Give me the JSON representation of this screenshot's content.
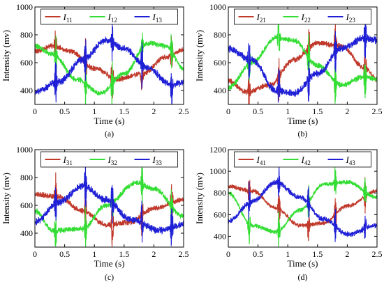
{
  "chart_data": [
    {
      "type": "line",
      "panel_label": "(a)",
      "xlabel": "Time (s)",
      "ylabel": "Intensity (mv)",
      "xlim": [
        0,
        2.5
      ],
      "ylim": [
        300,
        1000
      ],
      "xticks": [
        "0",
        "0.5",
        "1",
        "1.5",
        "2",
        "2.5"
      ],
      "yticks": [
        "400",
        "600",
        "800",
        "1000"
      ],
      "legend_position": "top",
      "grid": false,
      "jumps_at": [
        0.35,
        0.85,
        1.3,
        1.8,
        2.3
      ],
      "series": [
        {
          "name": "I",
          "sub": "11",
          "color": "#c0392b",
          "baseline": 600,
          "amplitude": 120,
          "period": 1.9,
          "phase": 0.25,
          "noise": 14,
          "points": [
            [
              0,
              680
            ],
            [
              0.3,
              720
            ],
            [
              0.6,
              680
            ],
            [
              1.0,
              560
            ],
            [
              1.4,
              480
            ],
            [
              1.8,
              520
            ],
            [
              2.2,
              640
            ],
            [
              2.5,
              690
            ]
          ]
        },
        {
          "name": "I",
          "sub": "12",
          "color": "#33dd33",
          "baseline": 560,
          "amplitude": 200,
          "period": 1.9,
          "phase": 0.93,
          "noise": 14,
          "points": [
            [
              0,
              720
            ],
            [
              0.3,
              660
            ],
            [
              0.7,
              480
            ],
            [
              1.1,
              380
            ],
            [
              1.5,
              520
            ],
            [
              1.9,
              740
            ],
            [
              2.2,
              720
            ],
            [
              2.5,
              560
            ]
          ]
        },
        {
          "name": "I",
          "sub": "13",
          "color": "#1f1fd6",
          "baseline": 570,
          "amplitude": 190,
          "period": 1.9,
          "phase": 0.55,
          "noise": 18,
          "points": [
            [
              0,
              390
            ],
            [
              0.4,
              460
            ],
            [
              0.8,
              620
            ],
            [
              1.2,
              760
            ],
            [
              1.5,
              700
            ],
            [
              1.9,
              560
            ],
            [
              2.3,
              440
            ],
            [
              2.5,
              460
            ]
          ]
        }
      ]
    },
    {
      "type": "line",
      "panel_label": "(b)",
      "xlabel": "Time (s)",
      "ylabel": "Intensity (mv)",
      "xlim": [
        0,
        2.5
      ],
      "ylim": [
        300,
        1000
      ],
      "xticks": [
        "0",
        "0.5",
        "1",
        "1.5",
        "2",
        "2.5"
      ],
      "yticks": [
        "400",
        "600",
        "800",
        "1000"
      ],
      "legend_position": "top",
      "grid": false,
      "jumps_at": [
        0.35,
        0.85,
        1.35,
        1.8,
        2.3
      ],
      "series": [
        {
          "name": "I",
          "sub": "21",
          "color": "#c0392b",
          "baseline": 560,
          "amplitude": 190,
          "period": 2.3,
          "phase": 0.8,
          "noise": 14,
          "points": [
            [
              0,
              470
            ],
            [
              0.3,
              390
            ],
            [
              0.7,
              440
            ],
            [
              1.1,
              620
            ],
            [
              1.5,
              740
            ],
            [
              1.9,
              720
            ],
            [
              2.3,
              560
            ],
            [
              2.5,
              480
            ]
          ]
        },
        {
          "name": "I",
          "sub": "22",
          "color": "#33dd33",
          "baseline": 600,
          "amplitude": 200,
          "period": 2.3,
          "phase": 0.3,
          "noise": 14,
          "points": [
            [
              0,
              420
            ],
            [
              0.4,
              600
            ],
            [
              0.8,
              780
            ],
            [
              1.1,
              760
            ],
            [
              1.5,
              580
            ],
            [
              1.9,
              440
            ],
            [
              2.3,
              500
            ],
            [
              2.5,
              480
            ]
          ]
        },
        {
          "name": "I",
          "sub": "23",
          "color": "#1f1fd6",
          "baseline": 580,
          "amplitude": 210,
          "period": 2.3,
          "phase": 0.1,
          "noise": 18,
          "points": [
            [
              0,
              700
            ],
            [
              0.4,
              620
            ],
            [
              0.8,
              400
            ],
            [
              1.1,
              380
            ],
            [
              1.5,
              520
            ],
            [
              1.9,
              700
            ],
            [
              2.3,
              780
            ],
            [
              2.5,
              760
            ]
          ]
        }
      ]
    },
    {
      "type": "line",
      "panel_label": "(c)",
      "xlabel": "Time (s)",
      "ylabel": "Intensity (mv)",
      "xlim": [
        0,
        2.5
      ],
      "ylim": [
        300,
        1000
      ],
      "xticks": [
        "0",
        "0.5",
        "1",
        "1.5",
        "2",
        "2.5"
      ],
      "yticks": [
        "400",
        "600",
        "800",
        "1000"
      ],
      "legend_position": "top",
      "grid": false,
      "jumps_at": [
        0.35,
        0.85,
        1.3,
        1.8,
        2.3
      ],
      "series": [
        {
          "name": "I",
          "sub": "31",
          "color": "#c0392b",
          "baseline": 560,
          "amplitude": 120,
          "period": 1.9,
          "phase": 0.25,
          "noise": 14,
          "points": [
            [
              0,
              680
            ],
            [
              0.4,
              660
            ],
            [
              0.8,
              560
            ],
            [
              1.2,
              460
            ],
            [
              1.6,
              480
            ],
            [
              2.0,
              580
            ],
            [
              2.5,
              640
            ]
          ]
        },
        {
          "name": "I",
          "sub": "32",
          "color": "#33dd33",
          "baseline": 570,
          "amplitude": 200,
          "period": 1.9,
          "phase": 0.93,
          "noise": 14,
          "points": [
            [
              0,
              560
            ],
            [
              0.3,
              420
            ],
            [
              0.8,
              430
            ],
            [
              1.2,
              600
            ],
            [
              1.7,
              760
            ],
            [
              2.0,
              720
            ],
            [
              2.5,
              520
            ]
          ]
        },
        {
          "name": "I",
          "sub": "33",
          "color": "#1f1fd6",
          "baseline": 560,
          "amplitude": 190,
          "period": 1.9,
          "phase": 0.55,
          "noise": 18,
          "points": [
            [
              0,
              480
            ],
            [
              0.4,
              620
            ],
            [
              0.8,
              740
            ],
            [
              1.2,
              640
            ],
            [
              1.6,
              500
            ],
            [
              2.1,
              420
            ],
            [
              2.5,
              460
            ]
          ]
        }
      ]
    },
    {
      "type": "line",
      "panel_label": "(d)",
      "xlabel": "Time (s)",
      "ylabel": "Intensity (mv)",
      "xlim": [
        0,
        2.5
      ],
      "ylim": [
        300,
        1200
      ],
      "xticks": [
        "0",
        "0.5",
        "1",
        "1.5",
        "2",
        "2.5"
      ],
      "yticks": [
        "400",
        "600",
        "800",
        "1000",
        "1200"
      ],
      "legend_position": "top",
      "grid": false,
      "jumps_at": [
        0.35,
        0.85,
        1.35,
        1.8,
        2.3
      ],
      "series": [
        {
          "name": "I",
          "sub": "41",
          "color": "#c0392b",
          "baseline": 680,
          "amplitude": 200,
          "period": 2.0,
          "phase": 0.25,
          "noise": 14,
          "points": [
            [
              0,
              860
            ],
            [
              0.4,
              820
            ],
            [
              0.8,
              660
            ],
            [
              1.2,
              500
            ],
            [
              1.6,
              520
            ],
            [
              2.0,
              680
            ],
            [
              2.5,
              820
            ]
          ]
        },
        {
          "name": "I",
          "sub": "42",
          "color": "#33dd33",
          "baseline": 640,
          "amplitude": 260,
          "period": 2.0,
          "phase": 1.0,
          "noise": 14,
          "points": [
            [
              0,
              800
            ],
            [
              0.4,
              500
            ],
            [
              0.8,
              440
            ],
            [
              1.2,
              640
            ],
            [
              1.6,
              880
            ],
            [
              2.0,
              900
            ],
            [
              2.5,
              760
            ]
          ]
        },
        {
          "name": "I",
          "sub": "43",
          "color": "#1f1fd6",
          "baseline": 680,
          "amplitude": 280,
          "period": 2.0,
          "phase": 0.6,
          "noise": 18,
          "points": [
            [
              0,
              540
            ],
            [
              0.4,
              720
            ],
            [
              0.8,
              900
            ],
            [
              1.2,
              760
            ],
            [
              1.6,
              560
            ],
            [
              2.0,
              420
            ],
            [
              2.5,
              500
            ]
          ]
        }
      ]
    }
  ]
}
